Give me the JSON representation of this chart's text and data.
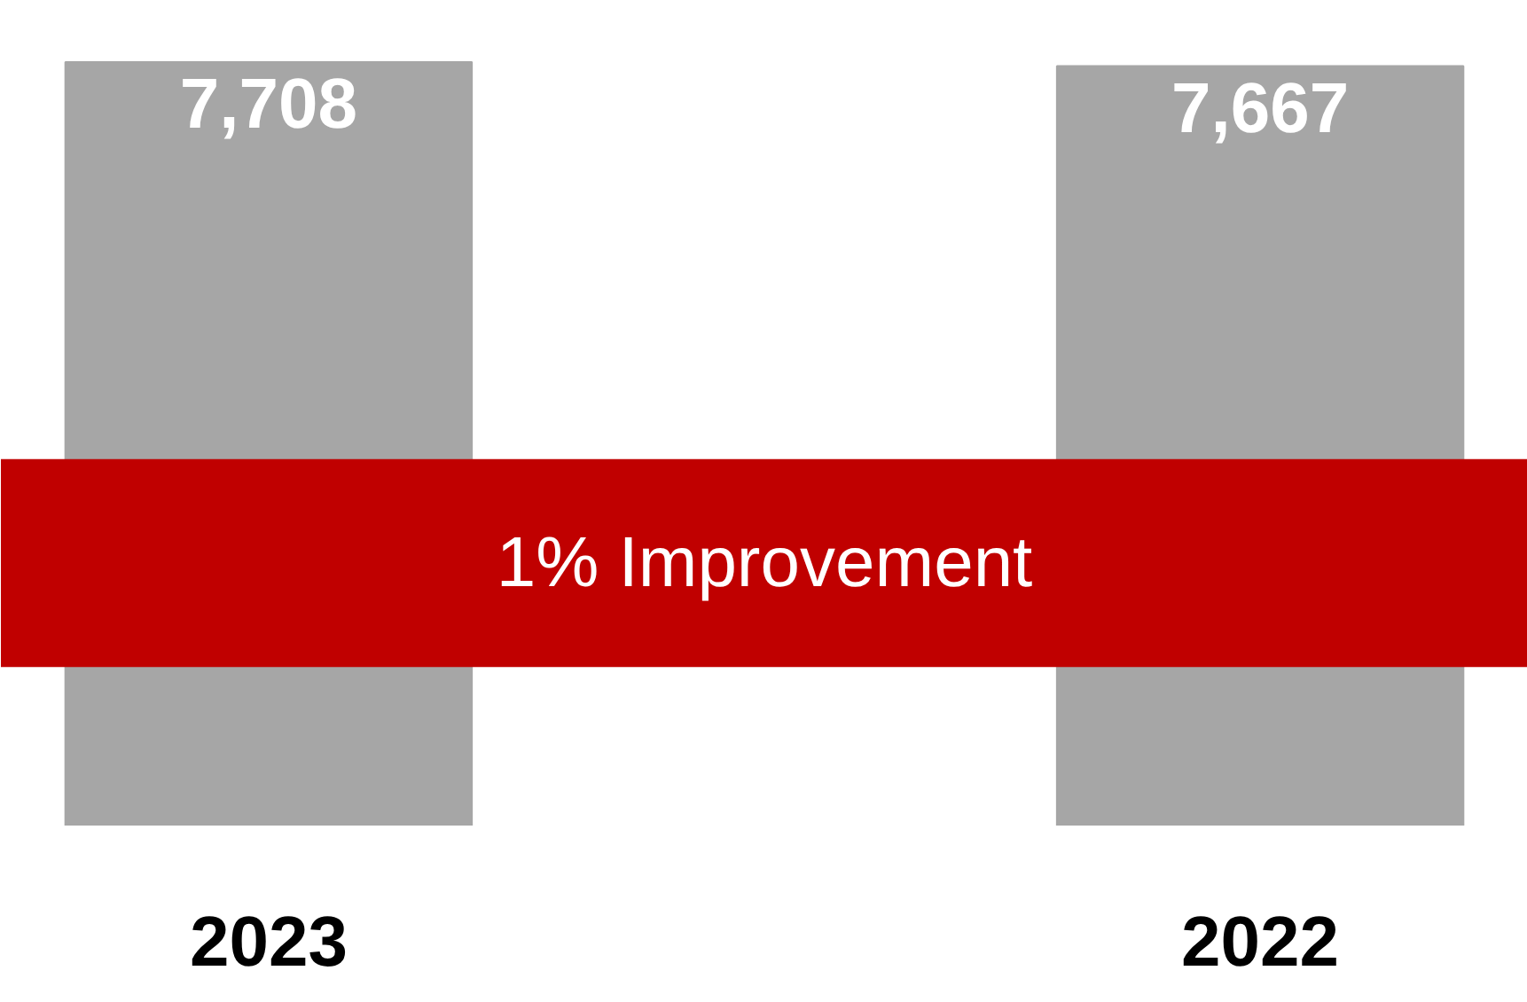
{
  "chart_data": {
    "type": "bar",
    "categories": [
      "2023",
      "2022"
    ],
    "values": [
      7708,
      7667
    ],
    "color": "#a6a6a6",
    "value_labels": [
      "7,708",
      "7,667"
    ],
    "grid": false,
    "bands": [
      {
        "axis": "y",
        "from": 1600,
        "to": 3700,
        "label": "1% Improvement",
        "color": "#c00000"
      }
    ]
  }
}
